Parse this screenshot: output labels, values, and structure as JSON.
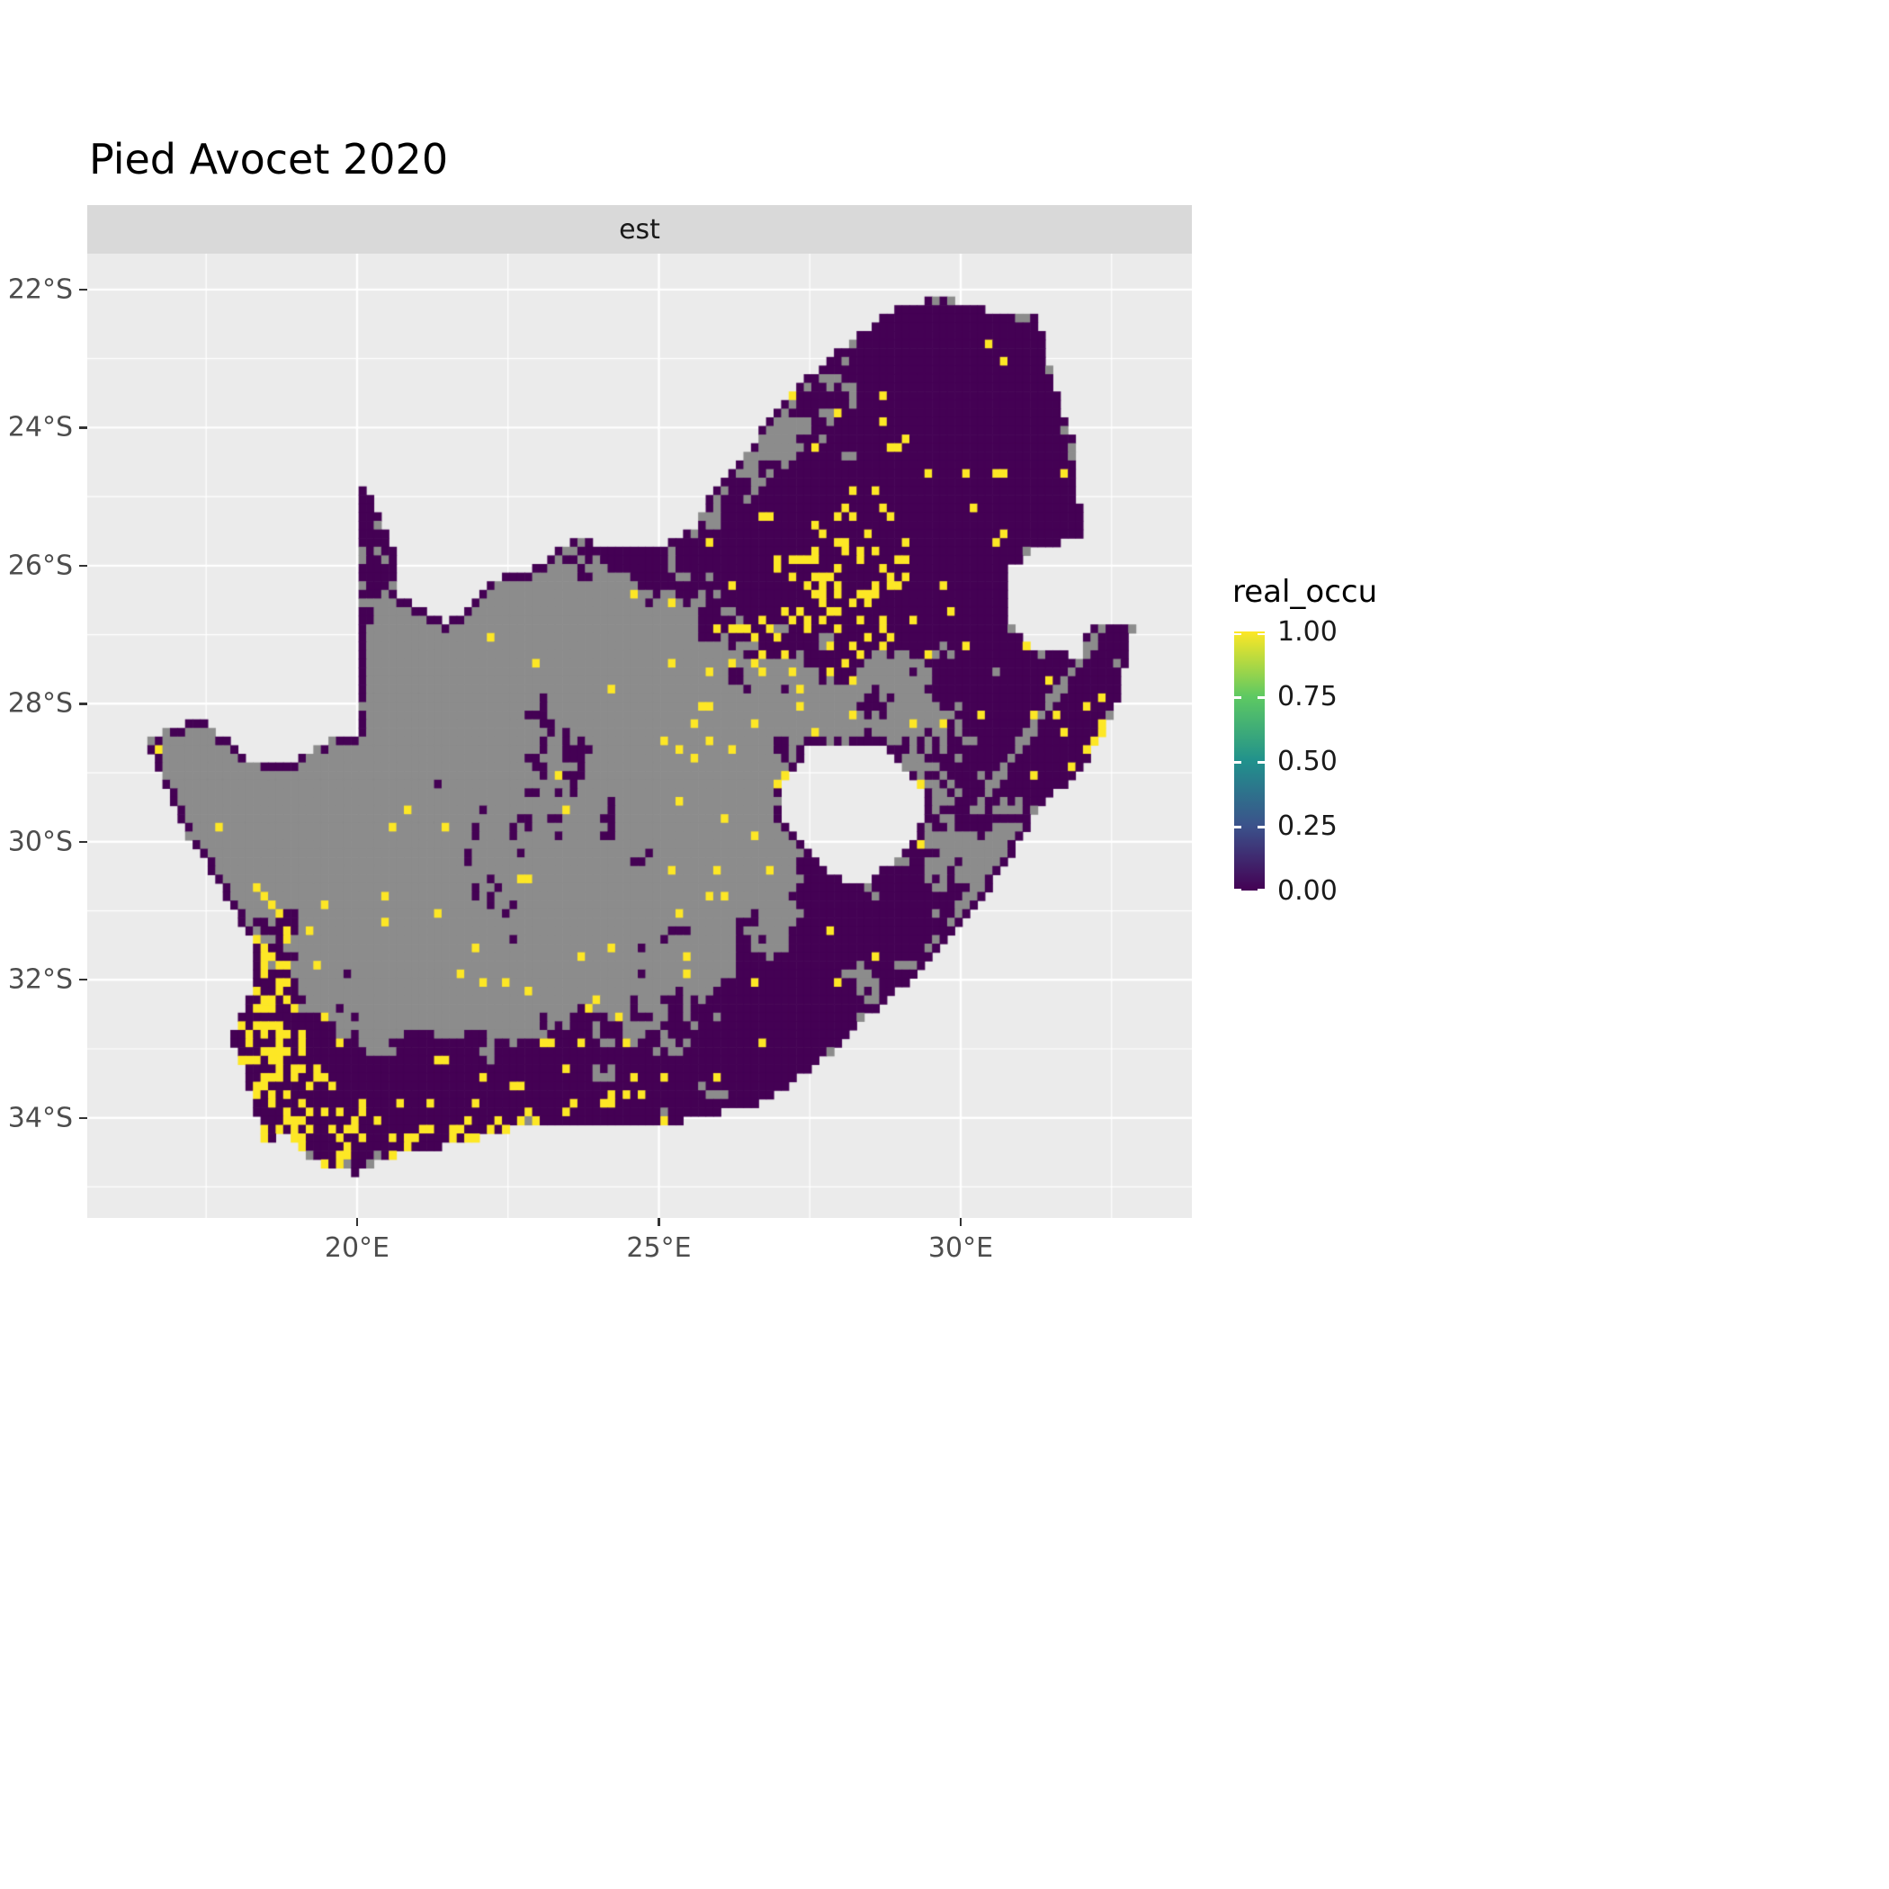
{
  "title": "Pied Avocet 2020",
  "facet_strip": "est",
  "legend": {
    "title": "real_occu",
    "ticks": [
      {
        "v": 1.0,
        "label": "1.00"
      },
      {
        "v": 0.75,
        "label": "0.75"
      },
      {
        "v": 0.5,
        "label": "0.50"
      },
      {
        "v": 0.25,
        "label": "0.25"
      },
      {
        "v": 0.0,
        "label": "0.00"
      }
    ],
    "gradient_stops": [
      [
        0,
        "#440154"
      ],
      [
        0.25,
        "#3B528B"
      ],
      [
        0.5,
        "#21918C"
      ],
      [
        0.75,
        "#5EC962"
      ],
      [
        1,
        "#FDE725"
      ]
    ]
  },
  "chart_data": {
    "type": "heatmap",
    "title": "Pied Avocet 2020",
    "facet": "est",
    "variable": "real_occu",
    "region": "South Africa gridded occupancy raster",
    "legend_position": "right",
    "x_range": [
      15.53,
      33.83
    ],
    "y_range": [
      -35.45,
      -21.48
    ],
    "x_ticks": [
      {
        "v": 20,
        "label": "20°E"
      },
      {
        "v": 25,
        "label": "25°E"
      },
      {
        "v": 30,
        "label": "30°E"
      }
    ],
    "y_ticks": [
      {
        "v": -22,
        "label": "22°S"
      },
      {
        "v": -24,
        "label": "24°S"
      },
      {
        "v": -26,
        "label": "26°S"
      },
      {
        "v": -28,
        "label": "28°S"
      },
      {
        "v": -30,
        "label": "30°S"
      },
      {
        "v": -32,
        "label": "32°S"
      },
      {
        "v": -34,
        "label": "34°S"
      }
    ],
    "x_minor": [
      17.5,
      22.5,
      27.5,
      32.5
    ],
    "y_minor": [
      -23,
      -25,
      -27,
      -29,
      -31,
      -33,
      -35
    ],
    "cell_size_deg": 0.125,
    "colors": {
      "background": "#FFFFFF",
      "panel_bg": "#EBEBEB",
      "strip_bg": "#D9D9D9",
      "strip_text": "#1A1A1A",
      "axis_text": "#4D4D4D",
      "tick_mark": "#333333",
      "grid": "#FFFFFF",
      "occupied": "#FDE725",
      "unoccupied": "#440154",
      "no_data": "#8C8C8C",
      "title_text": "#000000",
      "legend_text": "#1A1A1A"
    },
    "value_scale": {
      "min": 0,
      "max": 1,
      "stops": [
        [
          0,
          "#440154"
        ],
        [
          0.25,
          "#3B528B"
        ],
        [
          0.5,
          "#21918C"
        ],
        [
          0.75,
          "#5EC962"
        ],
        [
          1,
          "#FDE725"
        ]
      ]
    },
    "value_encoding": {
      "0.00": "#440154",
      "1.00": "#FDE725",
      "no_data": "#8C8C8C"
    },
    "region_outline": [
      [
        16.45,
        -28.6
      ],
      [
        16.95,
        -28.35
      ],
      [
        17.35,
        -28.2
      ],
      [
        17.75,
        -28.45
      ],
      [
        18.25,
        -28.9
      ],
      [
        18.9,
        -28.85
      ],
      [
        19.45,
        -28.55
      ],
      [
        19.98,
        -28.42
      ],
      [
        19.98,
        -27.5
      ],
      [
        19.98,
        -26.5
      ],
      [
        19.99,
        -25.4
      ],
      [
        20.0,
        -24.77
      ],
      [
        20.4,
        -25.25
      ],
      [
        20.65,
        -25.9
      ],
      [
        20.7,
        -26.45
      ],
      [
        21.5,
        -26.85
      ],
      [
        22.3,
        -26.2
      ],
      [
        22.9,
        -26.05
      ],
      [
        23.65,
        -25.6
      ],
      [
        24.3,
        -25.75
      ],
      [
        25.05,
        -25.7
      ],
      [
        25.6,
        -25.45
      ],
      [
        25.9,
        -24.85
      ],
      [
        26.45,
        -24.4
      ],
      [
        26.9,
        -23.75
      ],
      [
        27.55,
        -23.2
      ],
      [
        28.25,
        -22.7
      ],
      [
        29.05,
        -22.2
      ],
      [
        29.7,
        -22.13
      ],
      [
        30.45,
        -22.3
      ],
      [
        31.3,
        -22.4
      ],
      [
        31.55,
        -23.4
      ],
      [
        31.9,
        -24.3
      ],
      [
        31.97,
        -25.1
      ],
      [
        32.02,
        -25.62
      ],
      [
        31.3,
        -25.72
      ],
      [
        30.82,
        -26.05
      ],
      [
        30.8,
        -26.8
      ],
      [
        31.15,
        -27.2
      ],
      [
        31.97,
        -27.32
      ],
      [
        32.13,
        -26.86
      ],
      [
        32.89,
        -26.86
      ],
      [
        32.55,
        -28.1
      ],
      [
        32.05,
        -28.9
      ],
      [
        31.25,
        -29.55
      ],
      [
        31.0,
        -29.95
      ],
      [
        30.25,
        -31.0
      ],
      [
        29.35,
        -31.85
      ],
      [
        28.55,
        -32.45
      ],
      [
        27.9,
        -33.05
      ],
      [
        26.8,
        -33.75
      ],
      [
        25.65,
        -34.0
      ],
      [
        24.85,
        -34.15
      ],
      [
        23.4,
        -34.1
      ],
      [
        22.55,
        -34.15
      ],
      [
        21.7,
        -34.4
      ],
      [
        20.8,
        -34.45
      ],
      [
        20.0,
        -34.82
      ],
      [
        19.3,
        -34.62
      ],
      [
        18.85,
        -34.2
      ],
      [
        18.45,
        -34.35
      ],
      [
        18.3,
        -33.9
      ],
      [
        18.1,
        -33.3
      ],
      [
        17.9,
        -32.8
      ],
      [
        18.32,
        -32.1
      ],
      [
        18.25,
        -31.4
      ],
      [
        17.55,
        -30.4
      ],
      [
        17.05,
        -29.7
      ],
      [
        16.75,
        -29.0
      ]
    ],
    "region_holes": [
      [
        [
          27.0,
          -29.25
        ],
        [
          27.45,
          -28.65
        ],
        [
          28.1,
          -28.55
        ],
        [
          28.65,
          -28.6
        ],
        [
          29.15,
          -29.0
        ],
        [
          29.45,
          -29.35
        ],
        [
          29.3,
          -29.9
        ],
        [
          28.9,
          -30.3
        ],
        [
          28.35,
          -30.65
        ],
        [
          27.75,
          -30.45
        ],
        [
          27.35,
          -30.0
        ],
        [
          27.0,
          -29.6
        ]
      ]
    ],
    "occupancy_model": {
      "purple_base": 0.1,
      "purple_clusters": [
        [
          29.3,
          -23.2,
          1.6,
          0.9,
          0.8
        ],
        [
          30.9,
          -23.9,
          0.9,
          1.2,
          0.85
        ],
        [
          28.5,
          -25.9,
          1.1,
          0.8,
          0.85
        ],
        [
          29.9,
          -25.8,
          1.2,
          1.0,
          0.6
        ],
        [
          31.6,
          -24.0,
          0.6,
          1.8,
          0.9
        ],
        [
          30.7,
          -28.7,
          1.3,
          1.1,
          0.6
        ],
        [
          31.9,
          -27.8,
          0.7,
          1.0,
          0.75
        ],
        [
          27.0,
          -27.0,
          1.3,
          0.9,
          0.4
        ],
        [
          25.2,
          -33.5,
          2.0,
          0.9,
          0.55
        ],
        [
          27.6,
          -32.2,
          1.2,
          1.0,
          0.55
        ],
        [
          19.6,
          -34.1,
          1.3,
          0.8,
          0.9
        ],
        [
          21.8,
          -34.0,
          1.6,
          0.7,
          0.65
        ],
        [
          18.6,
          -32.6,
          0.7,
          1.2,
          0.65
        ],
        [
          20.3,
          -25.5,
          0.5,
          1.0,
          0.75
        ],
        [
          25.7,
          -25.7,
          1.3,
          0.5,
          0.5
        ],
        [
          23.0,
          -30.5,
          1.5,
          1.2,
          0.18
        ],
        [
          29.0,
          -30.9,
          0.9,
          0.8,
          0.55
        ],
        [
          24.0,
          -28.3,
          1.3,
          1.0,
          0.2
        ]
      ],
      "yellow_base": 0.01,
      "yellow_clusters": [
        [
          28.2,
          -26.2,
          0.7,
          0.6,
          0.3
        ],
        [
          27.2,
          -26.8,
          1.0,
          0.8,
          0.1
        ],
        [
          26.3,
          -28.2,
          0.9,
          0.7,
          0.08
        ],
        [
          18.6,
          -33.2,
          0.45,
          0.9,
          0.5
        ],
        [
          19.2,
          -34.4,
          0.9,
          0.35,
          0.4
        ],
        [
          18.4,
          -31.8,
          0.3,
          0.6,
          0.25
        ],
        [
          22.7,
          -34.0,
          1.6,
          0.4,
          0.07
        ],
        [
          32.0,
          -28.0,
          0.4,
          0.9,
          0.12
        ],
        [
          30.0,
          -24.8,
          1.5,
          1.2,
          0.03
        ],
        [
          20.8,
          -34.35,
          0.8,
          0.25,
          0.25
        ],
        [
          24.5,
          -31.5,
          2.0,
          1.5,
          0.015
        ]
      ],
      "gray_line": {
        "from": [
          32.35,
          -26.9
        ],
        "to": [
          30.25,
          -29.55
        ],
        "half_width_deg": 0.07
      }
    }
  }
}
